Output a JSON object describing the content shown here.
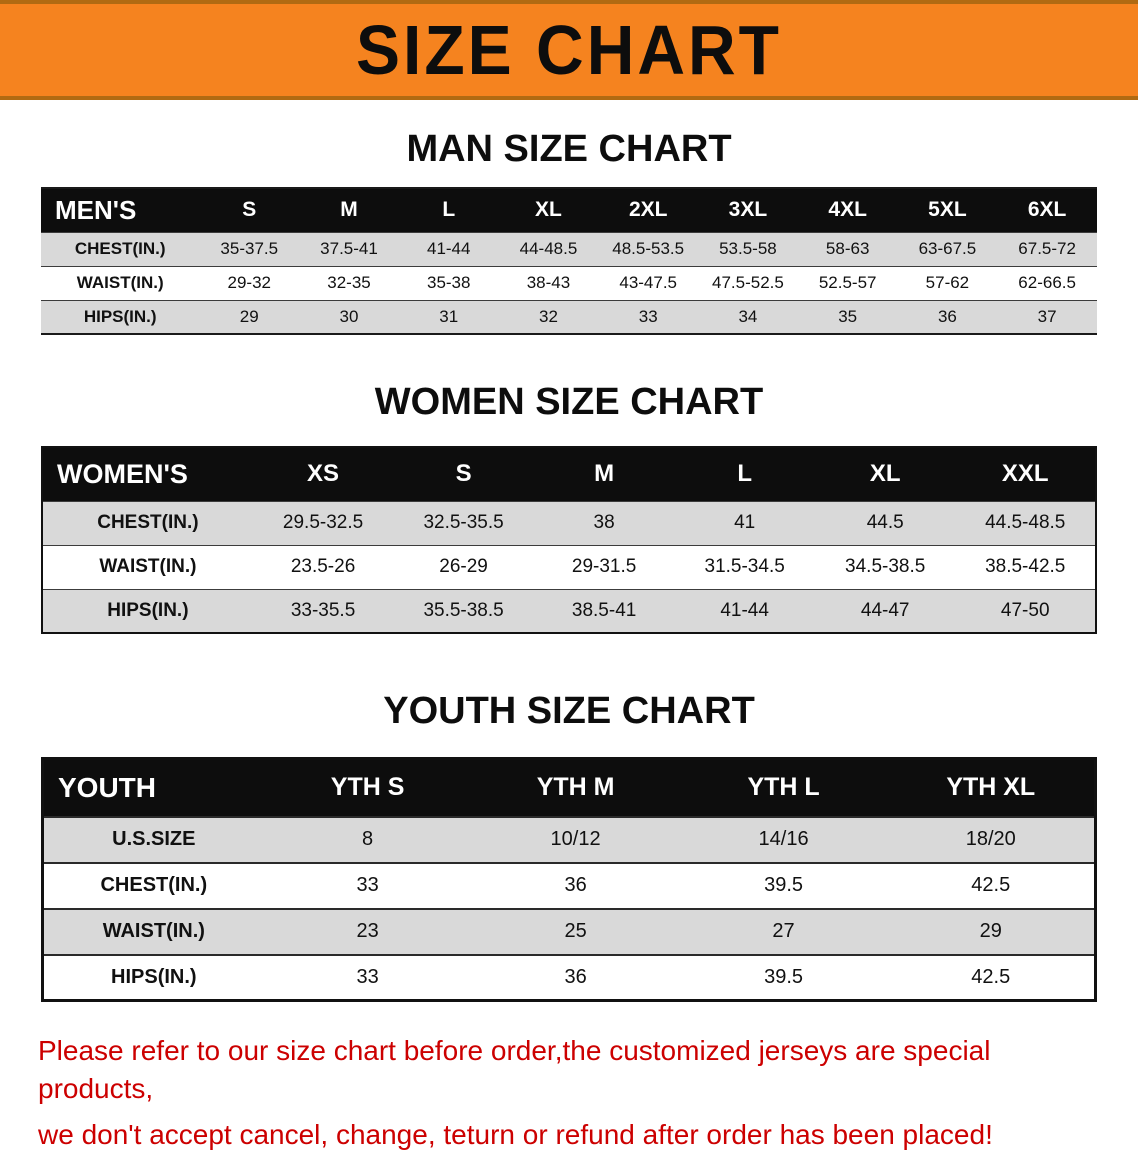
{
  "banner": {
    "title": "SIZE CHART",
    "bg_color": "#f5831f"
  },
  "colors": {
    "header_bar": "#0d0d0d",
    "alt_row": "#d9d9d9",
    "disclaimer_text": "#cc0000"
  },
  "sections": [
    {
      "heading": "MAN SIZE CHART",
      "table": {
        "header": [
          "MEN'S",
          "S",
          "M",
          "L",
          "XL",
          "2XL",
          "3XL",
          "4XL",
          "5XL",
          "6XL"
        ],
        "rows": [
          [
            "CHEST(IN.)",
            "35-37.5",
            "37.5-41",
            "41-44",
            "44-48.5",
            "48.5-53.5",
            "53.5-58",
            "58-63",
            "63-67.5",
            "67.5-72"
          ],
          [
            "WAIST(IN.)",
            "29-32",
            "32-35",
            "35-38",
            "38-43",
            "43-47.5",
            "47.5-52.5",
            "52.5-57",
            "57-62",
            "62-66.5"
          ],
          [
            "HIPS(IN.)",
            "29",
            "30",
            "31",
            "32",
            "33",
            "34",
            "35",
            "36",
            "37"
          ]
        ]
      }
    },
    {
      "heading": "WOMEN SIZE CHART",
      "table": {
        "header": [
          "WOMEN'S",
          "XS",
          "S",
          "M",
          "L",
          "XL",
          "XXL"
        ],
        "rows": [
          [
            "CHEST(IN.)",
            "29.5-32.5",
            "32.5-35.5",
            "38",
            "41",
            "44.5",
            "44.5-48.5"
          ],
          [
            "WAIST(IN.)",
            "23.5-26",
            "26-29",
            "29-31.5",
            "31.5-34.5",
            "34.5-38.5",
            "38.5-42.5"
          ],
          [
            "HIPS(IN.)",
            "33-35.5",
            "35.5-38.5",
            "38.5-41",
            "41-44",
            "44-47",
            "47-50"
          ]
        ]
      }
    },
    {
      "heading": "YOUTH SIZE CHART",
      "table": {
        "header": [
          "YOUTH",
          "YTH S",
          "YTH M",
          "YTH L",
          "YTH XL"
        ],
        "rows": [
          [
            "U.S.SIZE",
            "8",
            "10/12",
            "14/16",
            "18/20"
          ],
          [
            "CHEST(IN.)",
            "33",
            "36",
            "39.5",
            "42.5"
          ],
          [
            "WAIST(IN.)",
            "23",
            "25",
            "27",
            "29"
          ],
          [
            "HIPS(IN.)",
            "33",
            "36",
            "39.5",
            "42.5"
          ]
        ]
      }
    }
  ],
  "footer": {
    "lines": [
      "Please refer to our size chart before order,the customized jerseys are special products,",
      "we don't accept cancel, change, teturn or refund after order has been placed!"
    ]
  }
}
